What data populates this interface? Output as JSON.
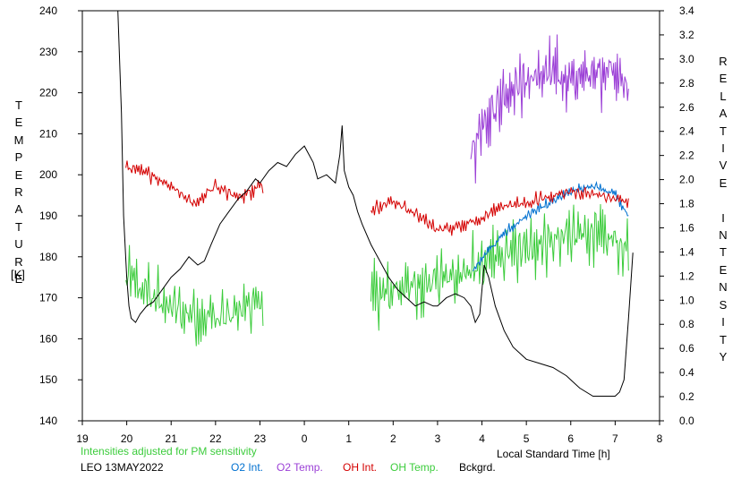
{
  "chart_data": {
    "type": "line",
    "y_left_label": "TEMPERATURE",
    "y_left_unit": "[K]",
    "y_right_label": "RELATIVE INTENSITY",
    "x_label": "Local Standard Time [h]",
    "note": "Intensities adjusted for PM sensitivity",
    "station": "LEO 13MAY2022",
    "x_tick_labels": [
      "19",
      "20",
      "21",
      "22",
      "23",
      "0",
      "1",
      "2",
      "3",
      "4",
      "5",
      "6",
      "7",
      "8"
    ],
    "y_left_ticks": [
      140,
      150,
      160,
      170,
      180,
      190,
      200,
      210,
      220,
      230,
      240
    ],
    "y_right_ticks": [
      "0.0",
      "0.2",
      "0.4",
      "0.6",
      "0.8",
      "1.0",
      "1.2",
      "1.4",
      "1.6",
      "1.8",
      "2.0",
      "2.2",
      "2.4",
      "2.6",
      "2.8",
      "3.0",
      "3.2",
      "3.4"
    ],
    "xlim": [
      19,
      32
    ],
    "ylim_left": [
      140,
      240
    ],
    "ylim_right": [
      0,
      3.4
    ],
    "legend": [
      "O2 Int.",
      "O2 Temp.",
      "OH Int.",
      "OH Temp.",
      "Bckgrd."
    ],
    "colors": {
      "O2 Int.": "#0070d0",
      "O2 Temp.": "#9b3fd6",
      "OH Int.": "#d40000",
      "OH Temp.": "#3ccc3c",
      "Bckgrd.": "#000000",
      "note": "#3ccc3c"
    },
    "series": [
      {
        "name": "Bckgrd.",
        "axis": "left",
        "x": [
          19.8,
          19.88,
          19.93,
          20.0,
          20.05,
          20.1,
          20.2,
          20.3,
          20.45,
          20.6,
          20.8,
          21.0,
          21.2,
          21.4,
          21.6,
          21.75,
          21.9,
          22.1,
          22.3,
          22.5,
          22.7,
          22.9,
          23.0,
          23.2,
          23.4,
          23.6,
          23.8,
          24.0,
          24.2,
          24.3,
          24.5,
          24.7,
          24.8,
          24.85,
          24.9,
          25.0,
          25.1,
          25.2,
          25.3,
          25.5,
          25.7,
          25.9,
          26.1,
          26.3,
          26.5,
          26.7,
          26.9,
          27.0,
          27.2,
          27.4,
          27.6,
          27.75,
          27.85,
          27.95,
          28.05,
          28.15,
          28.3,
          28.5,
          28.7,
          29.0,
          29.3,
          29.6,
          29.9,
          30.2,
          30.5,
          30.8,
          31.0,
          31.1,
          31.2,
          31.3,
          31.4
        ],
        "y": [
          240,
          215,
          190,
          175,
          168,
          165,
          164,
          166,
          168,
          169,
          172,
          175,
          177,
          180,
          178,
          179,
          183,
          188,
          191,
          194,
          196,
          199,
          198,
          201,
          203,
          202,
          205,
          207,
          203,
          199,
          200,
          198,
          205,
          212,
          201,
          197,
          195,
          191,
          188,
          183,
          179,
          175,
          172,
          170,
          168,
          169,
          168,
          168,
          170,
          171,
          170,
          168,
          164,
          166,
          178,
          175,
          168,
          162,
          158,
          155,
          154,
          153,
          151,
          148,
          146,
          146,
          146,
          147,
          150,
          165,
          181
        ]
      },
      {
        "name": "OH Temp.",
        "axis": "left",
        "x_range": [
          19.98,
          23.07
        ],
        "n": 115,
        "base_x": [
          20.0,
          20.5,
          21.0,
          21.5,
          22.0,
          22.5,
          23.0
        ],
        "base_y": [
          175,
          171,
          168,
          166,
          165,
          166,
          169
        ]
      },
      {
        "name": "OH Temp.",
        "axis": "left",
        "x_range": [
          25.5,
          31.3
        ],
        "n": 230,
        "base_x": [
          25.5,
          26.0,
          26.5,
          27.0,
          27.5,
          28.0,
          28.5,
          29.0,
          29.5,
          30.0,
          30.5,
          31.0,
          31.3
        ],
        "base_y": [
          170,
          172,
          173,
          174,
          176,
          178,
          180,
          182,
          184,
          185,
          186,
          184,
          181
        ]
      },
      {
        "name": "OH Int.",
        "axis": "right",
        "x_range": [
          19.98,
          23.07
        ],
        "n": 115,
        "base_x": [
          20.0,
          20.5,
          21.0,
          21.5,
          22.0,
          22.5,
          23.0
        ],
        "base_y": [
          2.1,
          2.05,
          1.95,
          1.8,
          1.95,
          1.85,
          1.95
        ]
      },
      {
        "name": "OH Int.",
        "axis": "right",
        "x_range": [
          25.5,
          31.3
        ],
        "n": 220,
        "base_x": [
          25.5,
          26.0,
          26.5,
          27.0,
          27.5,
          28.0,
          28.5,
          29.0,
          29.5,
          30.0,
          30.5,
          31.0,
          31.3
        ],
        "base_y": [
          1.75,
          1.82,
          1.72,
          1.58,
          1.62,
          1.68,
          1.78,
          1.8,
          1.86,
          1.9,
          1.88,
          1.84,
          1.82
        ]
      },
      {
        "name": "O2 Int.",
        "axis": "right",
        "x_range": [
          27.8,
          31.3
        ],
        "n": 160,
        "base_x": [
          27.8,
          28.0,
          28.5,
          29.0,
          29.5,
          30.0,
          30.5,
          31.0,
          31.3
        ],
        "base_y": [
          1.25,
          1.35,
          1.55,
          1.7,
          1.8,
          1.9,
          1.95,
          1.88,
          1.7
        ]
      },
      {
        "name": "O2 Temp.",
        "axis": "left",
        "x_range": [
          27.75,
          31.3
        ],
        "n": 170,
        "base_x": [
          27.75,
          28.0,
          28.5,
          29.0,
          29.5,
          30.0,
          30.5,
          31.0,
          31.3
        ],
        "base_y": [
          205,
          212,
          220,
          223,
          225,
          223,
          224,
          226,
          221
        ]
      }
    ]
  }
}
